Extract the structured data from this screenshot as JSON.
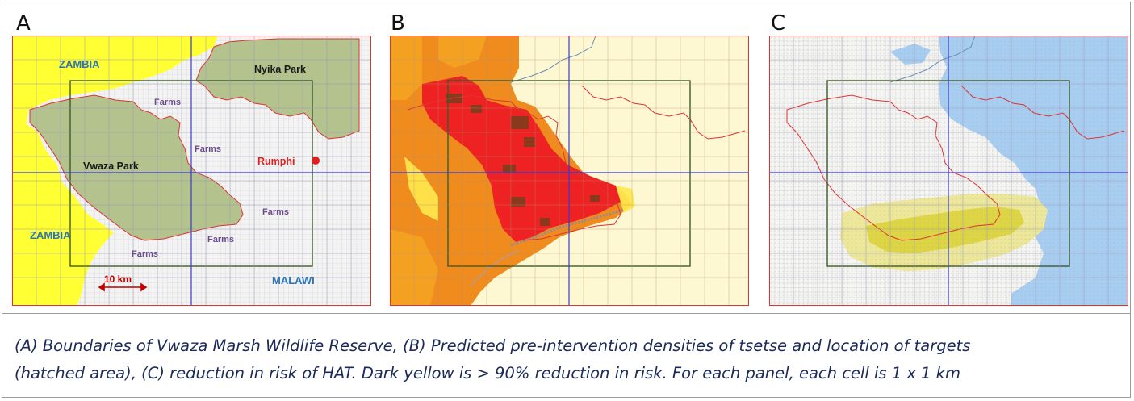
{
  "panels": [
    {
      "letter": "A",
      "labels": {
        "zambia_top": "ZAMBIA",
        "zambia_bottom": "ZAMBIA",
        "nyika": "Nyika Park",
        "vwaza": "Vwaza Park",
        "rumphi": "Rumphi",
        "malawi": "MALAWI",
        "farms": "Farms",
        "scale": "10 km"
      }
    },
    {
      "letter": "B"
    },
    {
      "letter": "C"
    }
  ],
  "caption": {
    "line1": "(A) Boundaries of Vwaza Marsh Wildlife Reserve, (B) Predicted pre-intervention densities of tsetse and location of targets",
    "line2": "(hatched area), (C) reduction in risk of HAT. Dark yellow is > 90% reduction in risk. For each panel, each cell is 1 x 1 km"
  },
  "colors": {
    "zambia": "#ffff33",
    "park": "#b5c28f",
    "farm_bg": "#f1f1f1",
    "density_high": "#ee1c1c",
    "density_mid": "#f08c1e",
    "density_low": "#fdf8d2",
    "risk_reduction": "#e8e48a",
    "risk_reduction_dark": "#d9d23a",
    "no_change": "#a7cdf3",
    "park_boundary": "#dd3333",
    "grid": "#3a3ac8",
    "target_box": "#3d5a2a",
    "title_blue": "#2e75b6",
    "label_red": "#e02020",
    "farms_text": "#6a4c8c"
  }
}
